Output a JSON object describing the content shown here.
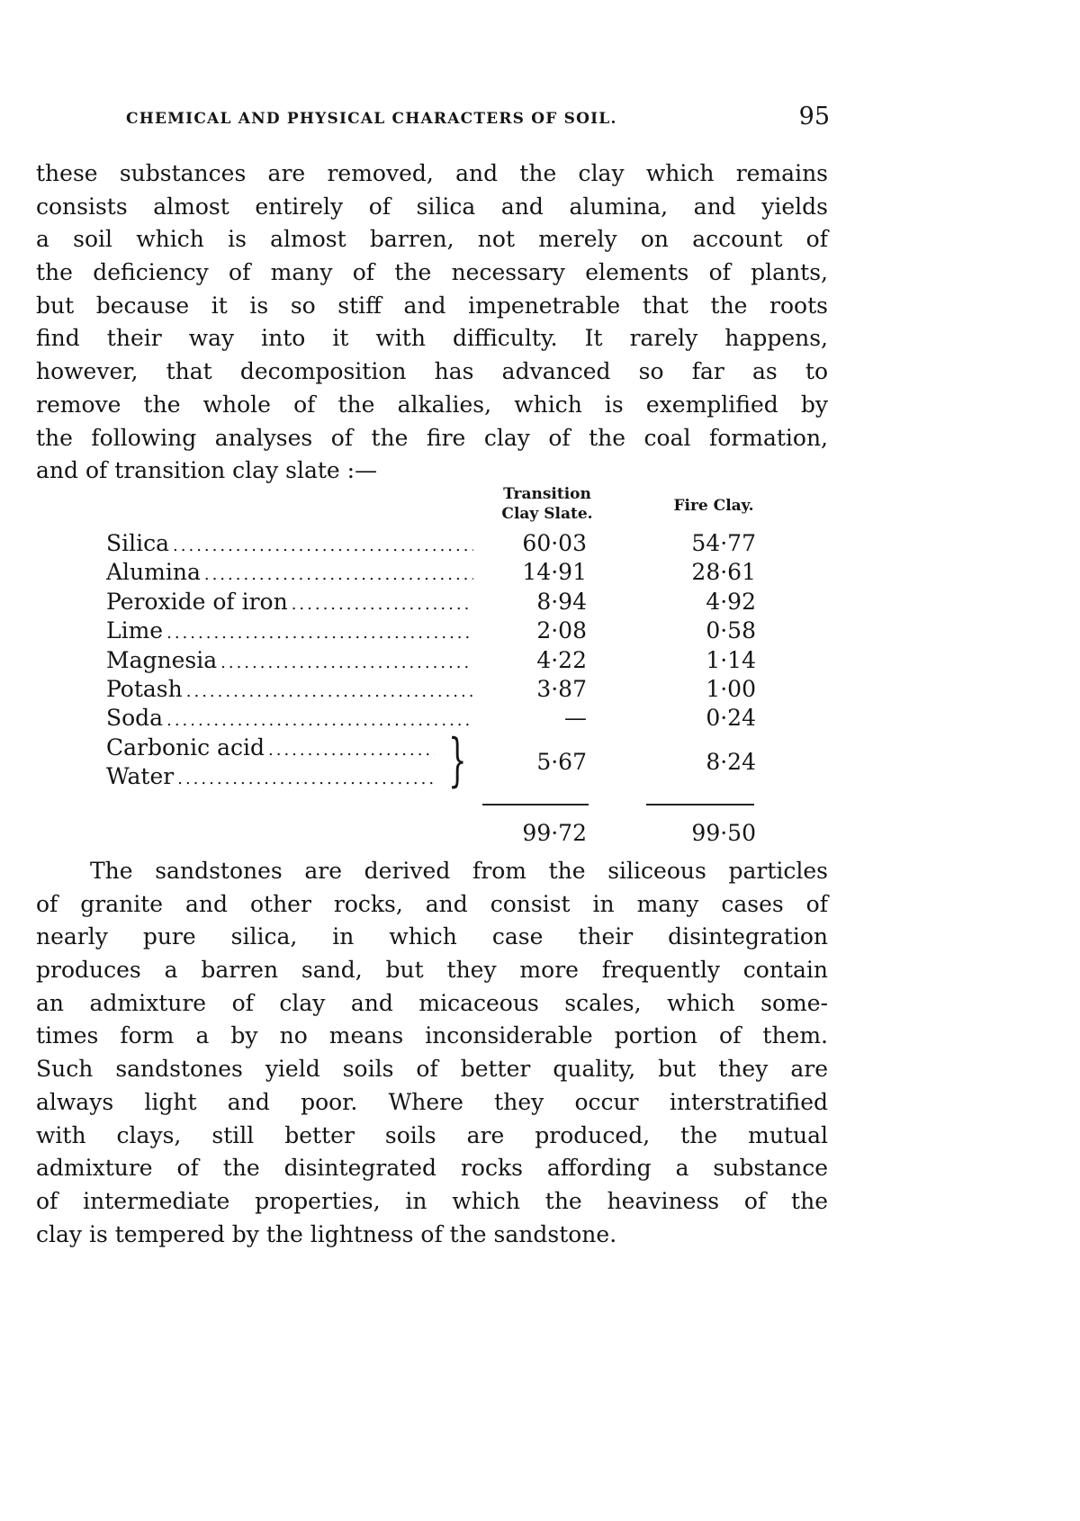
{
  "header": {
    "running_title": "CHEMICAL AND PHYSICAL CHARACTERS OF SOIL.",
    "page_number": "95"
  },
  "para1": {
    "lines": [
      "these substances are removed, and the clay which remains",
      "consists almost entirely of silica and alumina, and yields",
      "a soil which is almost barren, not merely on account of",
      "the deficiency of many of the necessary elements of plants,",
      "but because it is so stiff and impenetrable that the roots",
      "find their way into it with difficulty.  It rarely happens,",
      "however, that decomposition has advanced so far as to",
      "remove the whole of the alkalies, which is exemplified by",
      "the following analyses of the fire clay of the coal formation,",
      "and of transition clay slate :—"
    ]
  },
  "table": {
    "col1_header": [
      "Transition",
      "Clay Slate."
    ],
    "col2_header": "Fire Clay.",
    "rows": [
      {
        "label": "Silica",
        "slate": "60·03",
        "fire": "54·77"
      },
      {
        "label": "Alumina",
        "slate": "14·91",
        "fire": "28·61"
      },
      {
        "label": "Peroxide of iron",
        "slate": "8·94",
        "fire": "4·92"
      },
      {
        "label": "Lime",
        "slate": "2·08",
        "fire": "0·58"
      },
      {
        "label": "Magnesia",
        "slate": "4·22",
        "fire": "1·14"
      },
      {
        "label": "Potash",
        "slate": "3·87",
        "fire": "1·00"
      },
      {
        "label": "Soda",
        "slate": "—",
        "fire": "0·24"
      }
    ],
    "grouped": {
      "labels": [
        "Carbonic acid",
        "Water"
      ],
      "slate": "5·67",
      "fire": "8·24"
    },
    "totals": {
      "slate": "99·72",
      "fire": "99·50"
    }
  },
  "para2": {
    "lines": [
      "The sandstones are derived from the siliceous particles",
      "of granite and other rocks, and consist in many cases of",
      "nearly pure silica, in which case their disintegration",
      "produces a barren sand, but they more frequently contain",
      "an admixture of clay and micaceous scales, which some-",
      "times form a by no means inconsiderable portion of them.",
      "Such sandstones yield soils of better quality, but they are",
      "always light and poor.  Where they occur interstratified",
      "with clays, still better soils are produced, the mutual",
      "admixture of the disintegrated rocks affording a substance",
      "of intermediate properties, in which the heaviness of the",
      "clay is tempered by the lightness of the sandstone."
    ]
  }
}
